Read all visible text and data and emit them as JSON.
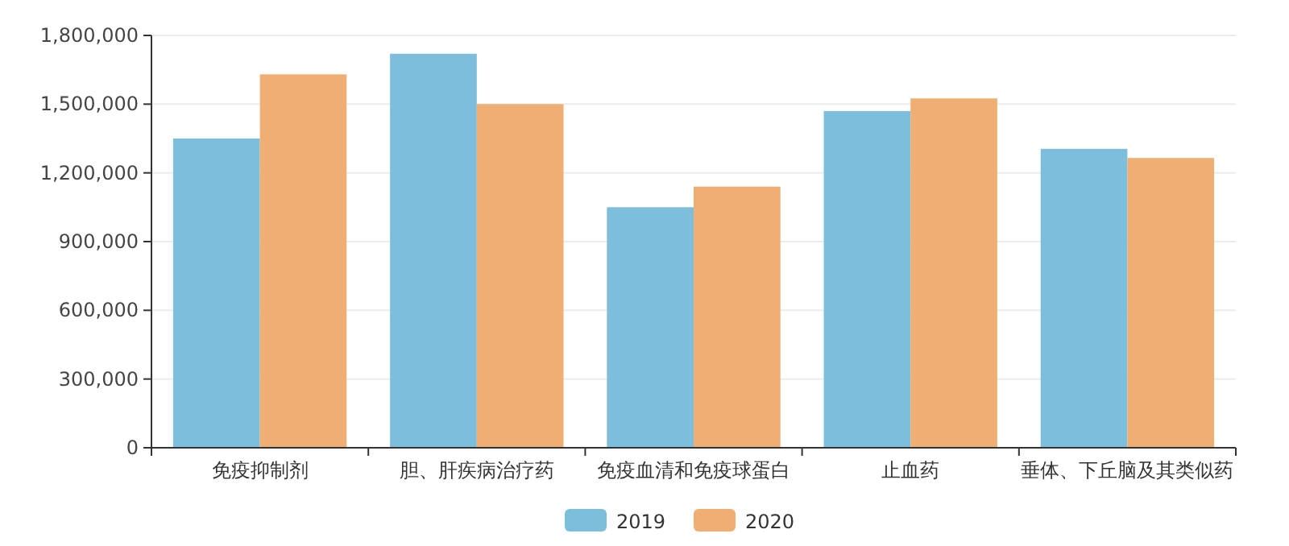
{
  "chart_data": {
    "type": "bar",
    "categories": [
      "免疫抑制剂",
      "胆、肝疾病治疗药",
      "免疫血清和免疫球蛋白",
      "止血药",
      "垂体、下丘脑及其类似药"
    ],
    "series": [
      {
        "name": "2019",
        "color": "#7dbedc",
        "values": [
          1350000,
          1720000,
          1050000,
          1470000,
          1305000
        ]
      },
      {
        "name": "2020",
        "color": "#eeae74",
        "values": [
          1630000,
          1500000,
          1140000,
          1525000,
          1265000
        ]
      }
    ],
    "ylim": [
      0,
      1800000
    ],
    "yticks": [
      {
        "value": 0,
        "label": "0"
      },
      {
        "value": 300000,
        "label": "300,000"
      },
      {
        "value": 600000,
        "label": "600,000"
      },
      {
        "value": 900000,
        "label": "900,000"
      },
      {
        "value": 1200000,
        "label": "1,200,000"
      },
      {
        "value": 1500000,
        "label": "1,500,000"
      },
      {
        "value": 1800000,
        "label": "1,800,000"
      }
    ],
    "grid": "y",
    "legend": "bottom"
  }
}
